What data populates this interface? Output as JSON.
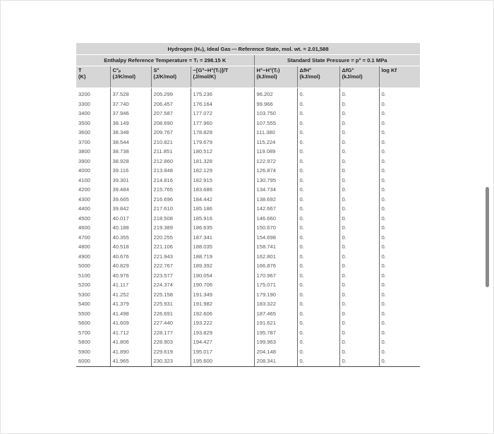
{
  "table": {
    "title": "Hydrogen (H₂), Ideal Gas — Reference State, mol. wt. = 2.01,588",
    "subtitle_left": "Enthalpy Reference Temperature = Tᵣ = 298.15 K",
    "subtitle_right": "Standard State Pressure = p° = 0.1 MPa",
    "columns": [
      {
        "name": "T",
        "unit": "(K)"
      },
      {
        "name": "C°ₚ",
        "unit": "(J/K/mol)"
      },
      {
        "name": "S°",
        "unit": "(J/K/mol)"
      },
      {
        "name": "−[G°−H°(Tᵣ)]/T",
        "unit": "(J/mol/K)"
      },
      {
        "name": "H°−H°(Tᵣ)",
        "unit": "(kJ/mol)"
      },
      {
        "name": "ΔfH°",
        "unit": "(kJ/mol)"
      },
      {
        "name": "ΔfG°",
        "unit": "(kJ/mol)"
      },
      {
        "name": "log Kf",
        "unit": ""
      }
    ],
    "rows": [
      [
        "3200",
        "37.528",
        "205.299",
        "175.236",
        "96.202",
        "0.",
        "0.",
        "0."
      ],
      [
        "3300",
        "37.740",
        "206.457",
        "176.164",
        "99.966",
        "0.",
        "0.",
        "0."
      ],
      [
        "3400",
        "37.946",
        "207.587",
        "177.072",
        "103.750",
        "0.",
        "0.",
        "0."
      ],
      [
        "3500",
        "38.149",
        "208.690",
        "177.960",
        "107.555",
        "0.",
        "0.",
        "0."
      ],
      [
        "3600",
        "38.348",
        "209.767",
        "178.828",
        "111.380",
        "0.",
        "0.",
        "0."
      ],
      [
        "3700",
        "38.544",
        "210.821",
        "179.679",
        "115.224",
        "0.",
        "0.",
        "0."
      ],
      [
        "3800",
        "38.738",
        "211.851",
        "180.512",
        "119.089",
        "0.",
        "0.",
        "0."
      ],
      [
        "3900",
        "38.928",
        "212.860",
        "181.328",
        "122.972",
        "0.",
        "0.",
        "0."
      ],
      [
        "4000",
        "39.116",
        "213.848",
        "182.129",
        "126.874",
        "0.",
        "0.",
        "0."
      ],
      [
        "4100",
        "39.301",
        "214.816",
        "182.915",
        "130.795",
        "0.",
        "0.",
        "0."
      ],
      [
        "4200",
        "39.484",
        "215.765",
        "183.686",
        "134.734",
        "0.",
        "0.",
        "0."
      ],
      [
        "4300",
        "39.665",
        "216.696",
        "184.442",
        "138.692",
        "0.",
        "0.",
        "0."
      ],
      [
        "4400",
        "39.842",
        "217.610",
        "185.186",
        "142.667",
        "0.",
        "0.",
        "0."
      ],
      [
        "4500",
        "40.017",
        "218.508",
        "185.916",
        "146.660",
        "0.",
        "0.",
        "0."
      ],
      [
        "4600",
        "40.188",
        "219.389",
        "186.635",
        "150.670",
        "0.",
        "0.",
        "0."
      ],
      [
        "4700",
        "40.355",
        "220.255",
        "187.341",
        "154.698",
        "0.",
        "0.",
        "0."
      ],
      [
        "4800",
        "40.518",
        "221.106",
        "188.035",
        "158.741",
        "0.",
        "0.",
        "0."
      ],
      [
        "4900",
        "40.676",
        "221.943",
        "188.719",
        "162.801",
        "0.",
        "0.",
        "0."
      ],
      [
        "5000",
        "40.829",
        "222.767",
        "189.392",
        "166.876",
        "0.",
        "0.",
        "0."
      ],
      [
        "5100",
        "40.976",
        "223.577",
        "190.054",
        "170.967",
        "0.",
        "0.",
        "0."
      ],
      [
        "5200",
        "41.117",
        "224.374",
        "190.706",
        "175.071",
        "0.",
        "0.",
        "0."
      ],
      [
        "5300",
        "41.252",
        "225.158",
        "191.349",
        "179.190",
        "0.",
        "0.",
        "0."
      ],
      [
        "5400",
        "41.379",
        "225.931",
        "191.982",
        "183.322",
        "0.",
        "0.",
        "0."
      ],
      [
        "5500",
        "41.498",
        "226.691",
        "192.606",
        "187.465",
        "0.",
        "0.",
        "0."
      ],
      [
        "5600",
        "41.609",
        "227.440",
        "193.222",
        "191.621",
        "0.",
        "0.",
        "0."
      ],
      [
        "5700",
        "41.712",
        "228.177",
        "193.829",
        "195.787",
        "0.",
        "0.",
        "0."
      ],
      [
        "5800",
        "41.806",
        "228.903",
        "194.427",
        "199.963",
        "0.",
        "0.",
        "0."
      ],
      [
        "5900",
        "41.890",
        "229.619",
        "195.017",
        "204.148",
        "0.",
        "0.",
        "0."
      ],
      [
        "6000",
        "41.965",
        "230.323",
        "195.600",
        "208.341",
        "0.",
        "0.",
        "0."
      ]
    ]
  }
}
